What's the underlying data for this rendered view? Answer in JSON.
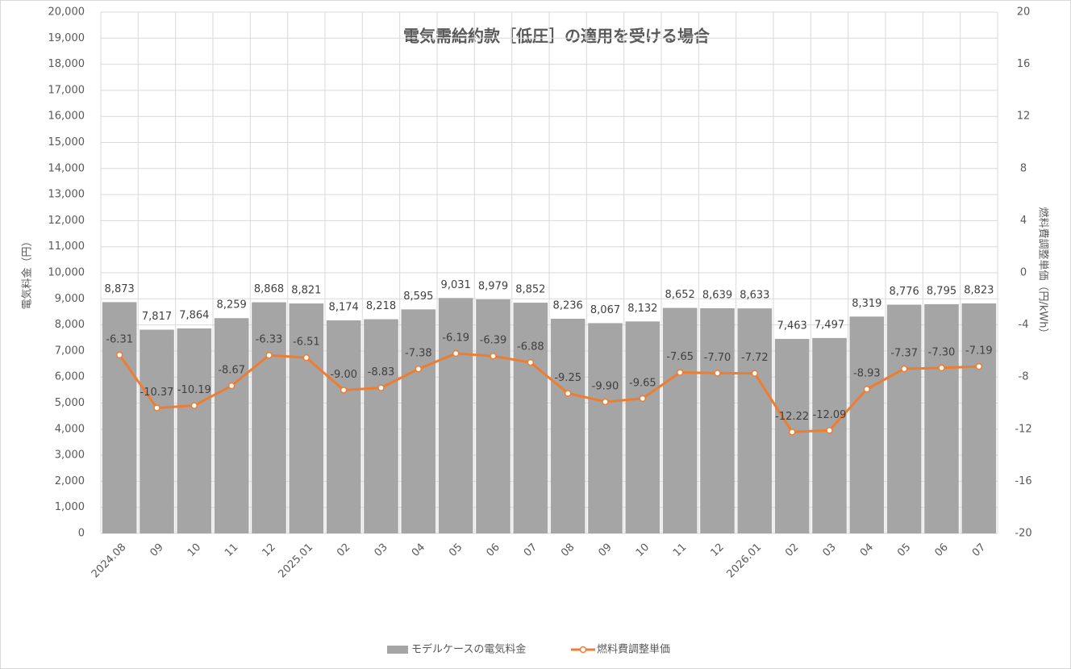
{
  "chart_data": {
    "type": "bar",
    "title": "電気需給約款［低圧］の適用を受ける場合",
    "ylabel": "電気料金（円）",
    "y2label": "燃料費調整単価（円/kWh）",
    "categories": [
      "2024.08",
      "09",
      "10",
      "11",
      "12",
      "2025.01",
      "02",
      "03",
      "04",
      "05",
      "06",
      "07",
      "08",
      "09",
      "10",
      "11",
      "12",
      "2026.01",
      "02",
      "03",
      "04",
      "05",
      "06",
      "07"
    ],
    "series": [
      {
        "name": "モデルケースの電気料金",
        "type": "bar",
        "color": "#a5a5a5",
        "values": [
          8873,
          7817,
          7864,
          8259,
          8868,
          8821,
          8174,
          8218,
          8595,
          9031,
          8979,
          8852,
          8236,
          8067,
          8132,
          8652,
          8639,
          8633,
          7463,
          7497,
          8319,
          8776,
          8795,
          8823
        ],
        "value_labels": [
          "8,873",
          "7,817",
          "7,864",
          "8,259",
          "8,868",
          "8,821",
          "8,174",
          "8,218",
          "8,595",
          "9,031",
          "8,979",
          "8,852",
          "8,236",
          "8,067",
          "8,132",
          "8,652",
          "8,639",
          "8,633",
          "7,463",
          "7,497",
          "8,319",
          "8,776",
          "8,795",
          "8,823"
        ]
      },
      {
        "name": "燃料費調整単価",
        "type": "line",
        "axis": "y2",
        "color": "#ed7d31",
        "values": [
          -6.31,
          -10.37,
          -10.19,
          -8.67,
          -6.33,
          -6.51,
          -9.0,
          -8.83,
          -7.38,
          -6.19,
          -6.39,
          -6.88,
          -9.25,
          -9.9,
          -9.65,
          -7.65,
          -7.7,
          -7.72,
          -12.22,
          -12.09,
          -8.93,
          -7.37,
          -7.3,
          -7.19
        ],
        "value_labels": [
          "-6.31",
          "-10.37",
          "-10.19",
          "-8.67",
          "-6.33",
          "-6.51",
          "-9.00",
          "-8.83",
          "-7.38",
          "-6.19",
          "-6.39",
          "-6.88",
          "-9.25",
          "-9.90",
          "-9.65",
          "-7.65",
          "-7.70",
          "-7.72",
          "-12.22",
          "-12.09",
          "-8.93",
          "-7.37",
          "-7.30",
          "-7.19"
        ]
      }
    ],
    "ylim": [
      0,
      20000
    ],
    "yticks": [
      0,
      {
        "value": 1000,
        "label": "1,000"
      },
      {
        "value": 2000,
        "label": "2,000"
      },
      {
        "value": 3000,
        "label": "3,000"
      },
      {
        "value": 4000,
        "label": "4,000"
      },
      {
        "value": 5000,
        "label": "5,000"
      },
      {
        "value": 6000,
        "label": "6,000"
      },
      {
        "value": 7000,
        "label": "7,000"
      },
      {
        "value": 8000,
        "label": "8,000"
      },
      {
        "value": 9000,
        "label": "9,000"
      },
      {
        "value": 10000,
        "label": "10,000"
      },
      {
        "value": 11000,
        "label": "11,000"
      },
      {
        "value": 12000,
        "label": "12,000"
      },
      {
        "value": 13000,
        "label": "13,000"
      },
      {
        "value": 14000,
        "label": "14,000"
      },
      {
        "value": 15000,
        "label": "15,000"
      },
      {
        "value": 16000,
        "label": "16,000"
      },
      {
        "value": 17000,
        "label": "17,000"
      },
      {
        "value": 18000,
        "label": "18,000"
      },
      {
        "value": 19000,
        "label": "19,000"
      },
      {
        "value": 20000,
        "label": "20,000"
      }
    ],
    "y2lim": [
      -20,
      20
    ],
    "y2ticks": [
      -20,
      -16,
      -12,
      -8,
      -4,
      0,
      4,
      8,
      12,
      16,
      20
    ],
    "grid": true,
    "legend": "bottom"
  }
}
